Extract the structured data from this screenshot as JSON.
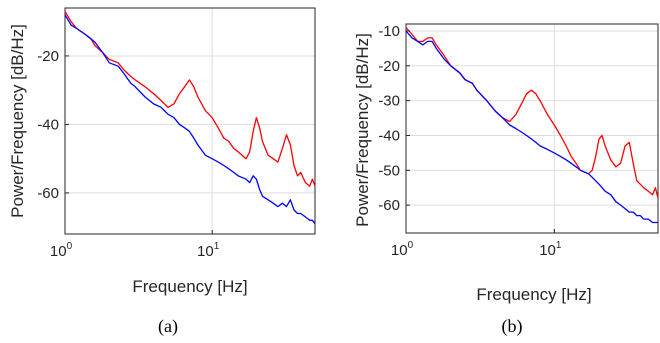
{
  "chart_data": [
    {
      "type": "line",
      "caption": "(a)",
      "xlabel": "Frequency [Hz]",
      "ylabel": "Power/Frequency [dB/Hz]",
      "x_scale": "log",
      "xlim": [
        1,
        50
      ],
      "ylim": [
        -72,
        -6
      ],
      "x_ticks": [
        {
          "base": "10",
          "exp": "0",
          "value": 1
        },
        {
          "base": "10",
          "exp": "1",
          "value": 10
        }
      ],
      "y_ticks": [
        -20,
        -40,
        -60
      ],
      "grid": true,
      "series": [
        {
          "color": "#ff0000",
          "x": [
            1.0,
            1.1,
            1.2,
            1.3,
            1.4,
            1.5,
            1.6,
            1.8,
            2.0,
            2.3,
            2.5,
            2.8,
            3.0,
            3.5,
            4.0,
            4.5,
            5.0,
            5.5,
            6.0,
            6.5,
            7.0,
            7.5,
            8.0,
            9.0,
            10.0,
            11.0,
            12.0,
            13.0,
            14.0,
            15.0,
            17.0,
            18.0,
            19.0,
            20.0,
            21.0,
            22.0,
            24.0,
            26.0,
            28.0,
            30.0,
            32.0,
            34.0,
            36.0,
            38.0,
            40.0,
            43.0,
            46.0,
            48.0,
            50.0
          ],
          "y": [
            -7,
            -10,
            -12,
            -13,
            -14,
            -15,
            -17,
            -19,
            -21,
            -22,
            -24,
            -26,
            -27,
            -29,
            -31,
            -33,
            -35,
            -34,
            -31,
            -29,
            -27,
            -29,
            -32,
            -36,
            -38,
            -41,
            -44,
            -45,
            -47,
            -48,
            -50,
            -48,
            -42,
            -38,
            -41,
            -45,
            -49,
            -50,
            -51,
            -47,
            -43,
            -46,
            -52,
            -55,
            -54,
            -57,
            -58,
            -56,
            -58
          ]
        },
        {
          "color": "#0000ff",
          "x": [
            1.0,
            1.1,
            1.2,
            1.3,
            1.4,
            1.5,
            1.6,
            1.8,
            2.0,
            2.3,
            2.5,
            2.8,
            3.0,
            3.5,
            4.0,
            4.5,
            5.0,
            5.5,
            6.0,
            6.5,
            7.0,
            7.5,
            8.0,
            9.0,
            10.0,
            11.0,
            12.0,
            13.0,
            14.0,
            15.0,
            17.0,
            18.0,
            19.0,
            20.0,
            21.0,
            22.0,
            24.0,
            26.0,
            28.0,
            30.0,
            32.0,
            34.0,
            36.0,
            38.0,
            40.0,
            43.0,
            46.0,
            48.0,
            50.0
          ],
          "y": [
            -8,
            -11,
            -12,
            -13,
            -14,
            -15,
            -16,
            -19,
            -22,
            -23,
            -25,
            -28,
            -29,
            -32,
            -34,
            -35,
            -37,
            -38,
            -40,
            -41,
            -42,
            -44,
            -46,
            -49,
            -50,
            -51,
            -52,
            -53,
            -54,
            -55,
            -56,
            -57,
            -55,
            -56,
            -59,
            -61,
            -62,
            -63,
            -64,
            -63,
            -64,
            -62,
            -65,
            -66,
            -66,
            -67,
            -68,
            -68,
            -69
          ]
        }
      ]
    },
    {
      "type": "line",
      "caption": "(b)",
      "xlabel": "Frequency [Hz]",
      "ylabel": "Power/Frequency [dB/Hz]",
      "x_scale": "log",
      "xlim": [
        1,
        50
      ],
      "ylim": [
        -68,
        -8
      ],
      "x_ticks": [
        {
          "base": "10",
          "exp": "0",
          "value": 1
        },
        {
          "base": "10",
          "exp": "1",
          "value": 10
        }
      ],
      "y_ticks": [
        -10,
        -20,
        -30,
        -40,
        -50,
        -60
      ],
      "grid": true,
      "series": [
        {
          "color": "#ff0000",
          "x": [
            1.0,
            1.1,
            1.2,
            1.3,
            1.4,
            1.5,
            1.6,
            1.8,
            2.0,
            2.3,
            2.5,
            2.8,
            3.0,
            3.5,
            4.0,
            4.5,
            5.0,
            5.5,
            6.0,
            6.5,
            7.0,
            7.5,
            8.0,
            9.0,
            10.0,
            11.0,
            12.0,
            13.0,
            14.0,
            15.0,
            17.0,
            18.0,
            19.0,
            20.0,
            21.0,
            22.0,
            24.0,
            26.0,
            28.0,
            30.0,
            32.0,
            34.0,
            36.0,
            38.0,
            40.0,
            43.0,
            46.0,
            48.0,
            50.0
          ],
          "y": [
            -9,
            -11,
            -13,
            -13,
            -12,
            -12,
            -14,
            -17,
            -20,
            -22,
            -24,
            -25,
            -27,
            -30,
            -33,
            -35,
            -36,
            -34,
            -31,
            -28,
            -27,
            -28,
            -30,
            -34,
            -37,
            -40,
            -43,
            -46,
            -48,
            -50,
            -51,
            -50,
            -46,
            -41,
            -40,
            -43,
            -47,
            -49,
            -48,
            -43,
            -42,
            -48,
            -53,
            -54,
            -55,
            -56,
            -57,
            -55,
            -58
          ]
        },
        {
          "color": "#0000ff",
          "x": [
            1.0,
            1.1,
            1.2,
            1.3,
            1.4,
            1.5,
            1.6,
            1.8,
            2.0,
            2.3,
            2.5,
            2.8,
            3.0,
            3.5,
            4.0,
            4.5,
            5.0,
            5.5,
            6.0,
            6.5,
            7.0,
            7.5,
            8.0,
            9.0,
            10.0,
            11.0,
            12.0,
            13.0,
            14.0,
            15.0,
            17.0,
            18.0,
            19.0,
            20.0,
            21.0,
            22.0,
            24.0,
            26.0,
            28.0,
            30.0,
            32.0,
            34.0,
            36.0,
            38.0,
            40.0,
            43.0,
            46.0,
            48.0,
            50.0
          ],
          "y": [
            -10,
            -12,
            -13,
            -14,
            -13,
            -13,
            -15,
            -18,
            -20,
            -22,
            -24,
            -25,
            -27,
            -30,
            -33,
            -35,
            -37,
            -38,
            -39,
            -40,
            -41,
            -42,
            -43,
            -44,
            -45,
            -46,
            -47,
            -48,
            -49,
            -50,
            -51,
            -52,
            -53,
            -54,
            -55,
            -56,
            -57,
            -59,
            -60,
            -61,
            -62,
            -62,
            -63,
            -63,
            -64,
            -64,
            -65,
            -65,
            -65
          ]
        }
      ]
    }
  ]
}
